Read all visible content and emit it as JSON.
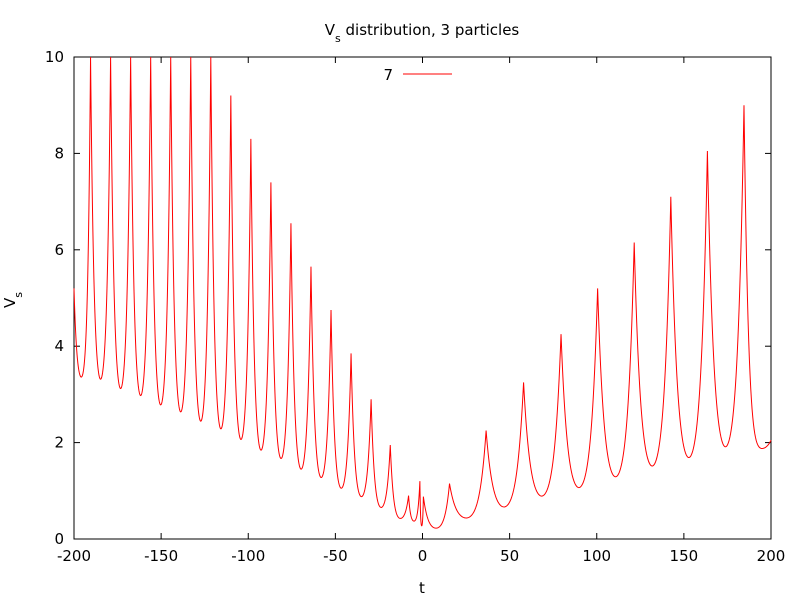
{
  "chart_data": {
    "type": "line",
    "title": "V",
    "title_sub": "s",
    "title_rest": " distribution, 3 particles",
    "xlabel": "t",
    "ylabel": "V",
    "ylabel_sub": "s",
    "xlim": [
      -200,
      200
    ],
    "ylim": [
      0,
      10
    ],
    "xticks": [
      -200,
      -150,
      -100,
      -50,
      0,
      50,
      100,
      150,
      200
    ],
    "yticks": [
      0,
      2,
      4,
      6,
      8,
      10
    ],
    "xtick_labels": [
      "-200",
      "-150",
      "-100",
      "-50",
      "0",
      "50",
      "100",
      "150",
      "200"
    ],
    "ytick_labels": [
      "0",
      "2",
      "4",
      "6",
      "8",
      "10"
    ],
    "grid": false,
    "legend_position": "top-center",
    "series": [
      {
        "name": "7",
        "color": "#ff0000",
        "start": [
          -200,
          5.2
        ],
        "peaks": [
          {
            "t": -190.5,
            "v": 10.0,
            "min_before": 3.25
          },
          {
            "t": -179.0,
            "v": 10.0,
            "min_before": 3.1
          },
          {
            "t": -167.5,
            "v": 10.0,
            "min_before": 2.9
          },
          {
            "t": -156.0,
            "v": 10.0,
            "min_before": 2.75
          },
          {
            "t": -144.5,
            "v": 10.0,
            "min_before": 2.55
          },
          {
            "t": -133.0,
            "v": 10.0,
            "min_before": 2.4
          },
          {
            "t": -121.5,
            "v": 10.0,
            "min_before": 2.2
          },
          {
            "t": -110.0,
            "v": 9.2,
            "min_before": 2.05
          },
          {
            "t": -98.5,
            "v": 8.3,
            "min_before": 1.85
          },
          {
            "t": -87.0,
            "v": 7.4,
            "min_before": 1.65
          },
          {
            "t": -75.5,
            "v": 6.55,
            "min_before": 1.5
          },
          {
            "t": -64.0,
            "v": 5.65,
            "min_before": 1.3
          },
          {
            "t": -52.5,
            "v": 4.75,
            "min_before": 1.15
          },
          {
            "t": -41.0,
            "v": 3.85,
            "min_before": 0.95
          },
          {
            "t": -29.5,
            "v": 2.9,
            "min_before": 0.8
          },
          {
            "t": -18.5,
            "v": 1.95,
            "min_before": 0.6
          },
          {
            "t": -8.0,
            "v": 0.9,
            "min_before": 0.4
          },
          {
            "t": -1.5,
            "v": 1.2,
            "min_before": 0.35
          },
          {
            "t": 0.5,
            "v": 0.88,
            "min_before": 0.25
          },
          {
            "t": 15.5,
            "v": 1.15,
            "min_before": 0.2
          },
          {
            "t": 36.5,
            "v": 2.25,
            "min_before": 0.4
          },
          {
            "t": 58.0,
            "v": 3.25,
            "min_before": 0.6
          },
          {
            "t": 79.5,
            "v": 4.25,
            "min_before": 0.8
          },
          {
            "t": 100.5,
            "v": 5.2,
            "min_before": 0.95
          },
          {
            "t": 121.5,
            "v": 6.15,
            "min_before": 1.15
          },
          {
            "t": 142.5,
            "v": 7.1,
            "min_before": 1.35
          },
          {
            "t": 163.5,
            "v": 8.05,
            "min_before": 1.5
          },
          {
            "t": 184.5,
            "v": 9.0,
            "min_before": 1.7
          }
        ],
        "end": [
          200,
          2.05
        ],
        "end_min": 1.85
      }
    ]
  }
}
